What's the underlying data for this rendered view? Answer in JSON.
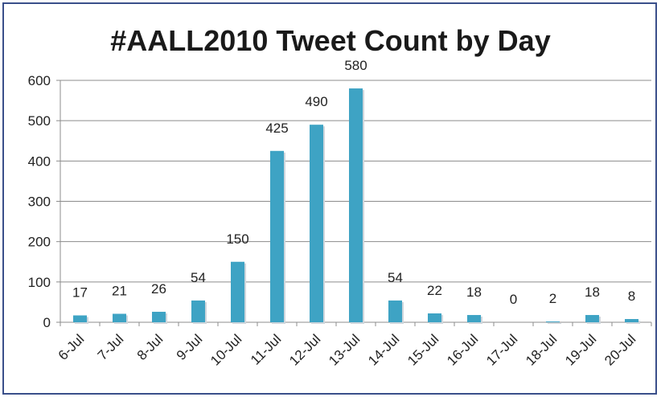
{
  "chart_data": {
    "type": "bar",
    "title": "#AALL2010 Tweet Count by Day",
    "categories": [
      "6-Jul",
      "7-Jul",
      "8-Jul",
      "9-Jul",
      "10-Jul",
      "11-Jul",
      "12-Jul",
      "13-Jul",
      "14-Jul",
      "15-Jul",
      "16-Jul",
      "17-Jul",
      "18-Jul",
      "19-Jul",
      "20-Jul"
    ],
    "values": [
      17,
      21,
      26,
      54,
      150,
      425,
      490,
      580,
      54,
      22,
      18,
      0,
      2,
      18,
      8
    ],
    "ylim": [
      0,
      600
    ],
    "yticks": [
      0,
      100,
      200,
      300,
      400,
      500,
      600
    ],
    "grid": true,
    "legend": "none",
    "bar_color": "#3ea3c4",
    "grid_color": "#8c8c8c"
  }
}
